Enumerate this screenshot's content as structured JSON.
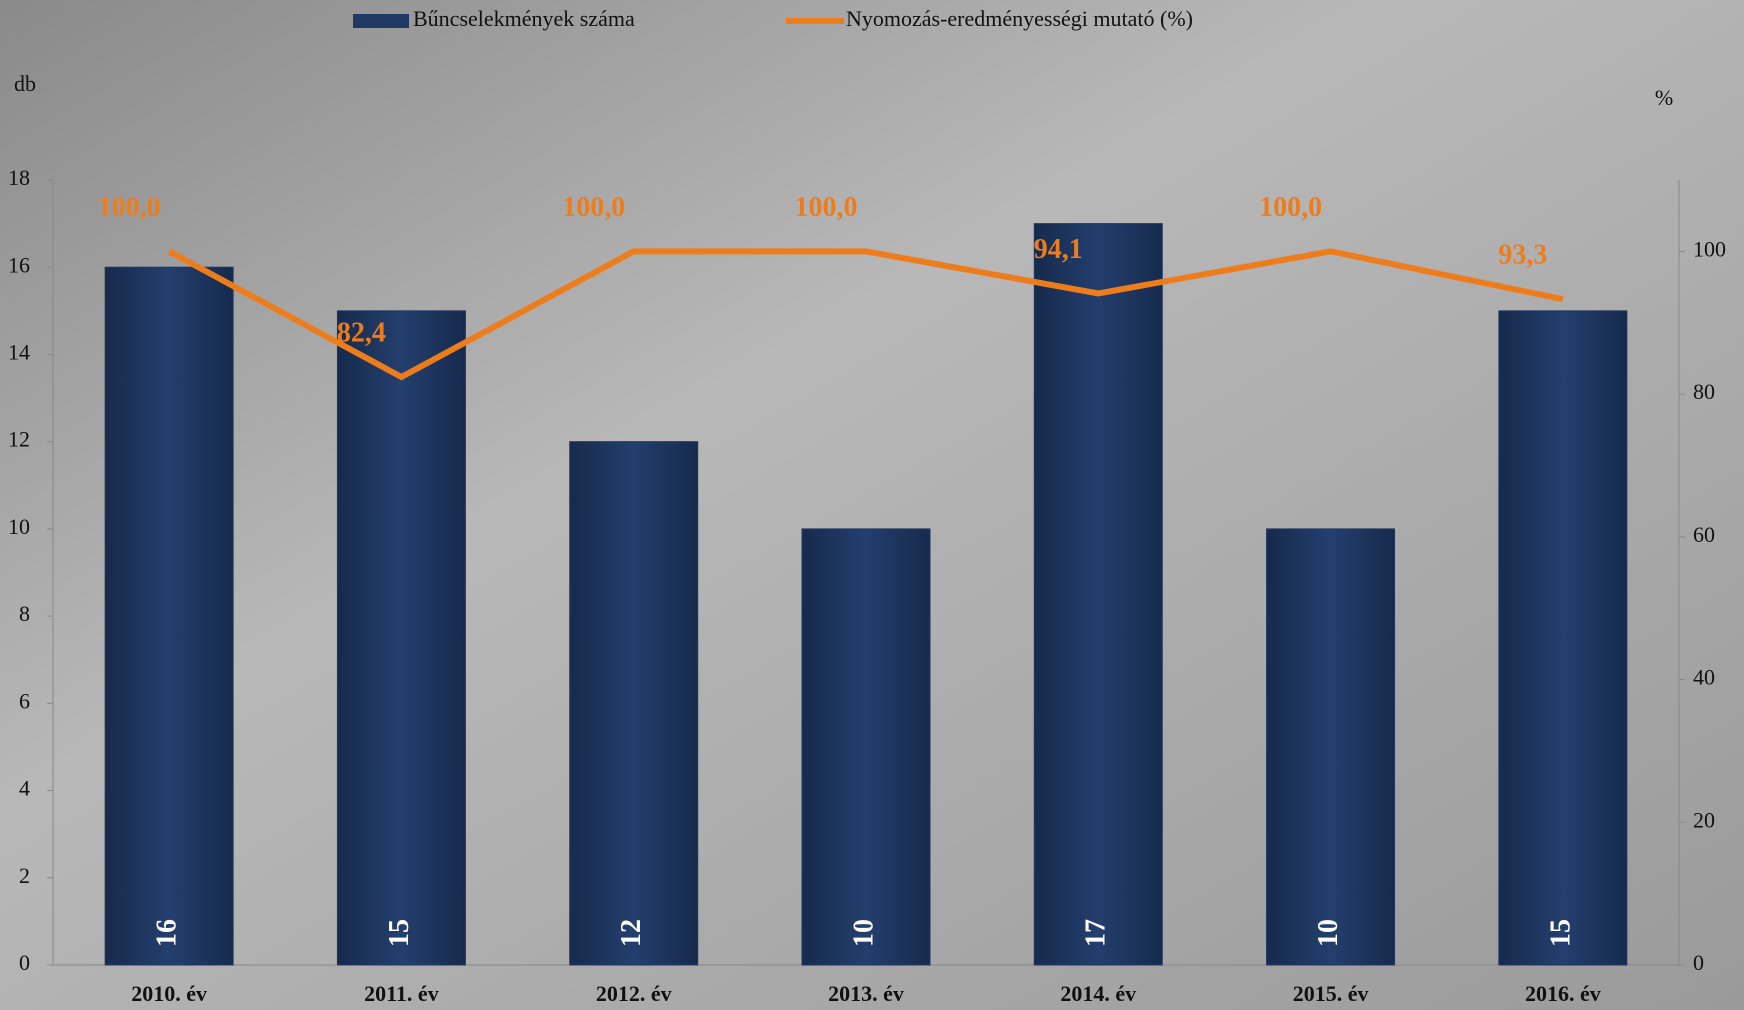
{
  "chart_data": {
    "type": "bar_line",
    "categories": [
      "2010. év",
      "2011. év",
      "2012. év",
      "2013. év",
      "2014. év",
      "2015. év",
      "2016. év"
    ],
    "y_label": "db",
    "y2_label": "%",
    "series": [
      {
        "name": "Bűncselekmények száma",
        "type": "bar",
        "color": "#1f3864",
        "values": [
          16,
          15,
          12,
          10,
          17,
          10,
          15
        ]
      },
      {
        "name": "Nyomozás-eredményességi mutató (%)",
        "type": "line",
        "axis": "y2",
        "color": "#ed7d1c",
        "values": [
          100.0,
          82.4,
          100.0,
          100.0,
          94.1,
          100.0,
          93.3
        ],
        "value_labels": [
          "100,0",
          "82,4",
          "100,0",
          "100,0",
          "94,1",
          "100,0",
          "93,3"
        ]
      }
    ],
    "ylim": [
      0,
      18
    ],
    "yticks": [
      0,
      2,
      4,
      6,
      8,
      10,
      12,
      14,
      16,
      18
    ],
    "y2lim": [
      0,
      110
    ],
    "y2ticks": [
      0,
      20,
      40,
      60,
      80,
      100
    ]
  }
}
